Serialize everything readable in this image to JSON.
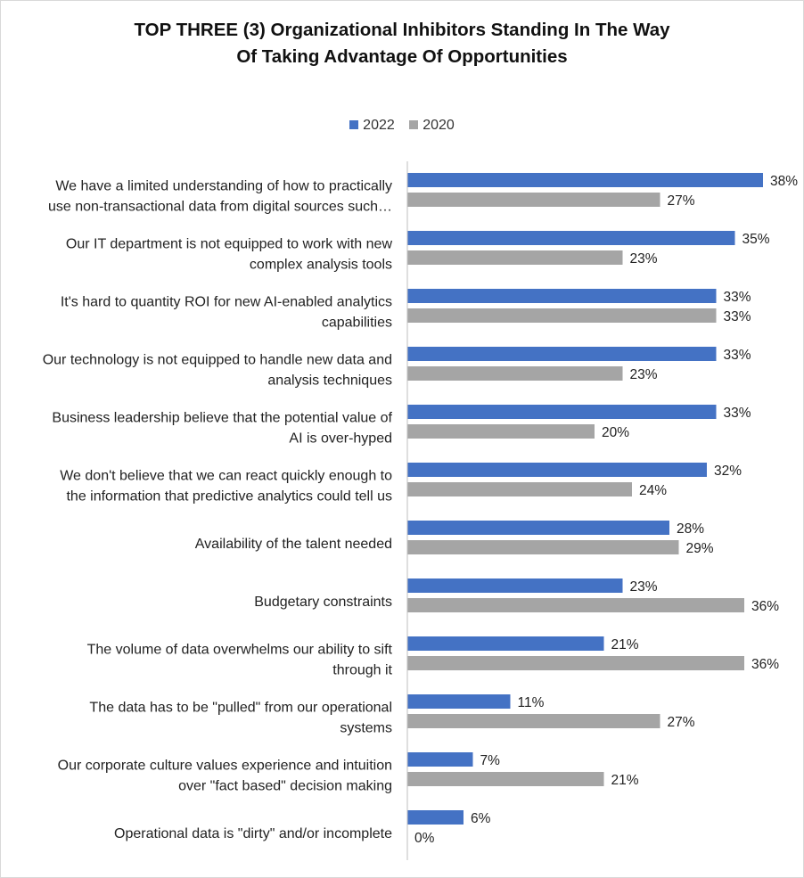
{
  "chart_data": {
    "type": "bar",
    "orientation": "horizontal",
    "title": "TOP THREE (3) Organizational Inhibitors Standing In The Way Of Taking Advantage Of Opportunities",
    "title_lines": [
      "TOP THREE (3) Organizational Inhibitors Standing In The Way",
      "Of Taking Advantage Of Opportunities"
    ],
    "xlabel": "",
    "ylabel": "",
    "xlim": [
      0,
      40
    ],
    "grid": false,
    "legend_position": "top-center",
    "value_format": "percent",
    "categories": [
      [
        "We have a limited understanding of how to practically",
        "use non-transactional data from digital sources such…"
      ],
      [
        "Our IT department is not equipped to work with new",
        "complex analysis tools"
      ],
      [
        "It's hard to quantity ROI for new AI-enabled analytics",
        "capabilities"
      ],
      [
        "Our technology is not equipped to handle new data and",
        "analysis techniques"
      ],
      [
        "Business leadership believe that the potential value of",
        "AI is over-hyped"
      ],
      [
        "We don't believe that we can react quickly enough to",
        "the information that predictive analytics could tell us"
      ],
      [
        "Availability of the talent needed"
      ],
      [
        "Budgetary constraints"
      ],
      [
        "The volume of data overwhelms our ability to sift",
        "through it"
      ],
      [
        "The data has to be \"pulled\" from our operational",
        "systems"
      ],
      [
        "Our corporate culture values experience and intuition",
        "over \"fact based\" decision making"
      ],
      [
        "Operational data is \"dirty\" and/or incomplete"
      ]
    ],
    "series": [
      {
        "name": "2022",
        "color": "#4472c4",
        "values": [
          38,
          35,
          33,
          33,
          33,
          32,
          28,
          23,
          21,
          11,
          7,
          6
        ]
      },
      {
        "name": "2020",
        "color": "#a5a5a5",
        "values": [
          27,
          23,
          33,
          23,
          20,
          24,
          29,
          36,
          36,
          27,
          21,
          0
        ]
      }
    ]
  }
}
